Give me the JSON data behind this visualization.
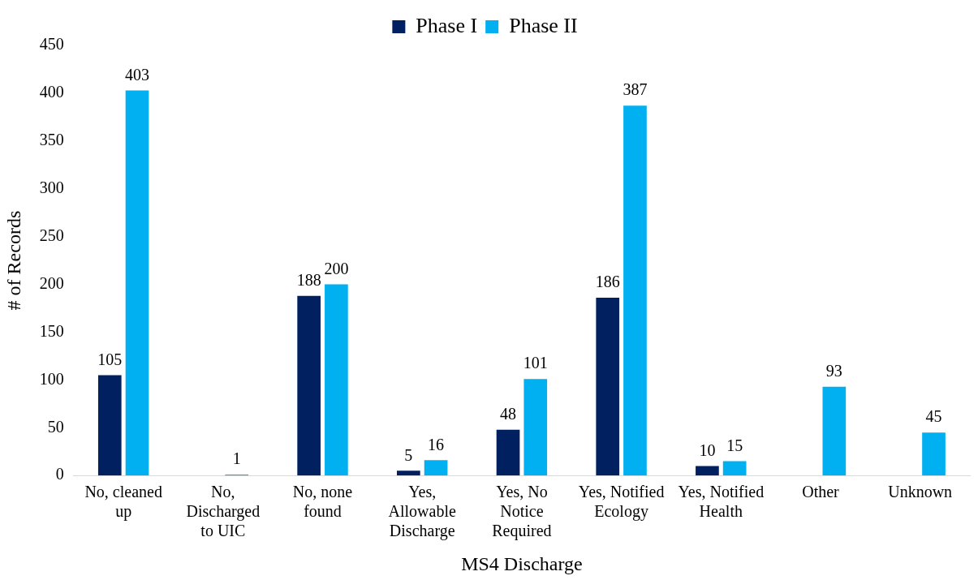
{
  "chart_data": {
    "type": "bar",
    "xlabel": "MS4 Discharge",
    "ylabel": "# of Records",
    "categories": [
      "No, cleaned up",
      "No, Discharged to UIC",
      "No, none found",
      "Yes, Allowable Discharge",
      "Yes, No Notice Required",
      "Yes, Notified Ecology",
      "Yes, Notified Health",
      "Other",
      "Unknown"
    ],
    "series": [
      {
        "name": "Phase I",
        "color": "#002060",
        "values": [
          105,
          null,
          188,
          5,
          48,
          186,
          10,
          null,
          null
        ]
      },
      {
        "name": "Phase II",
        "color": "#00b0f0",
        "values": [
          403,
          1,
          200,
          16,
          101,
          387,
          15,
          93,
          45
        ]
      }
    ],
    "ylim": [
      0,
      450
    ],
    "yticks": [
      0,
      50,
      100,
      150,
      200,
      250,
      300,
      350,
      400,
      450
    ],
    "grid": false,
    "legend": "top",
    "data_labels": true
  }
}
